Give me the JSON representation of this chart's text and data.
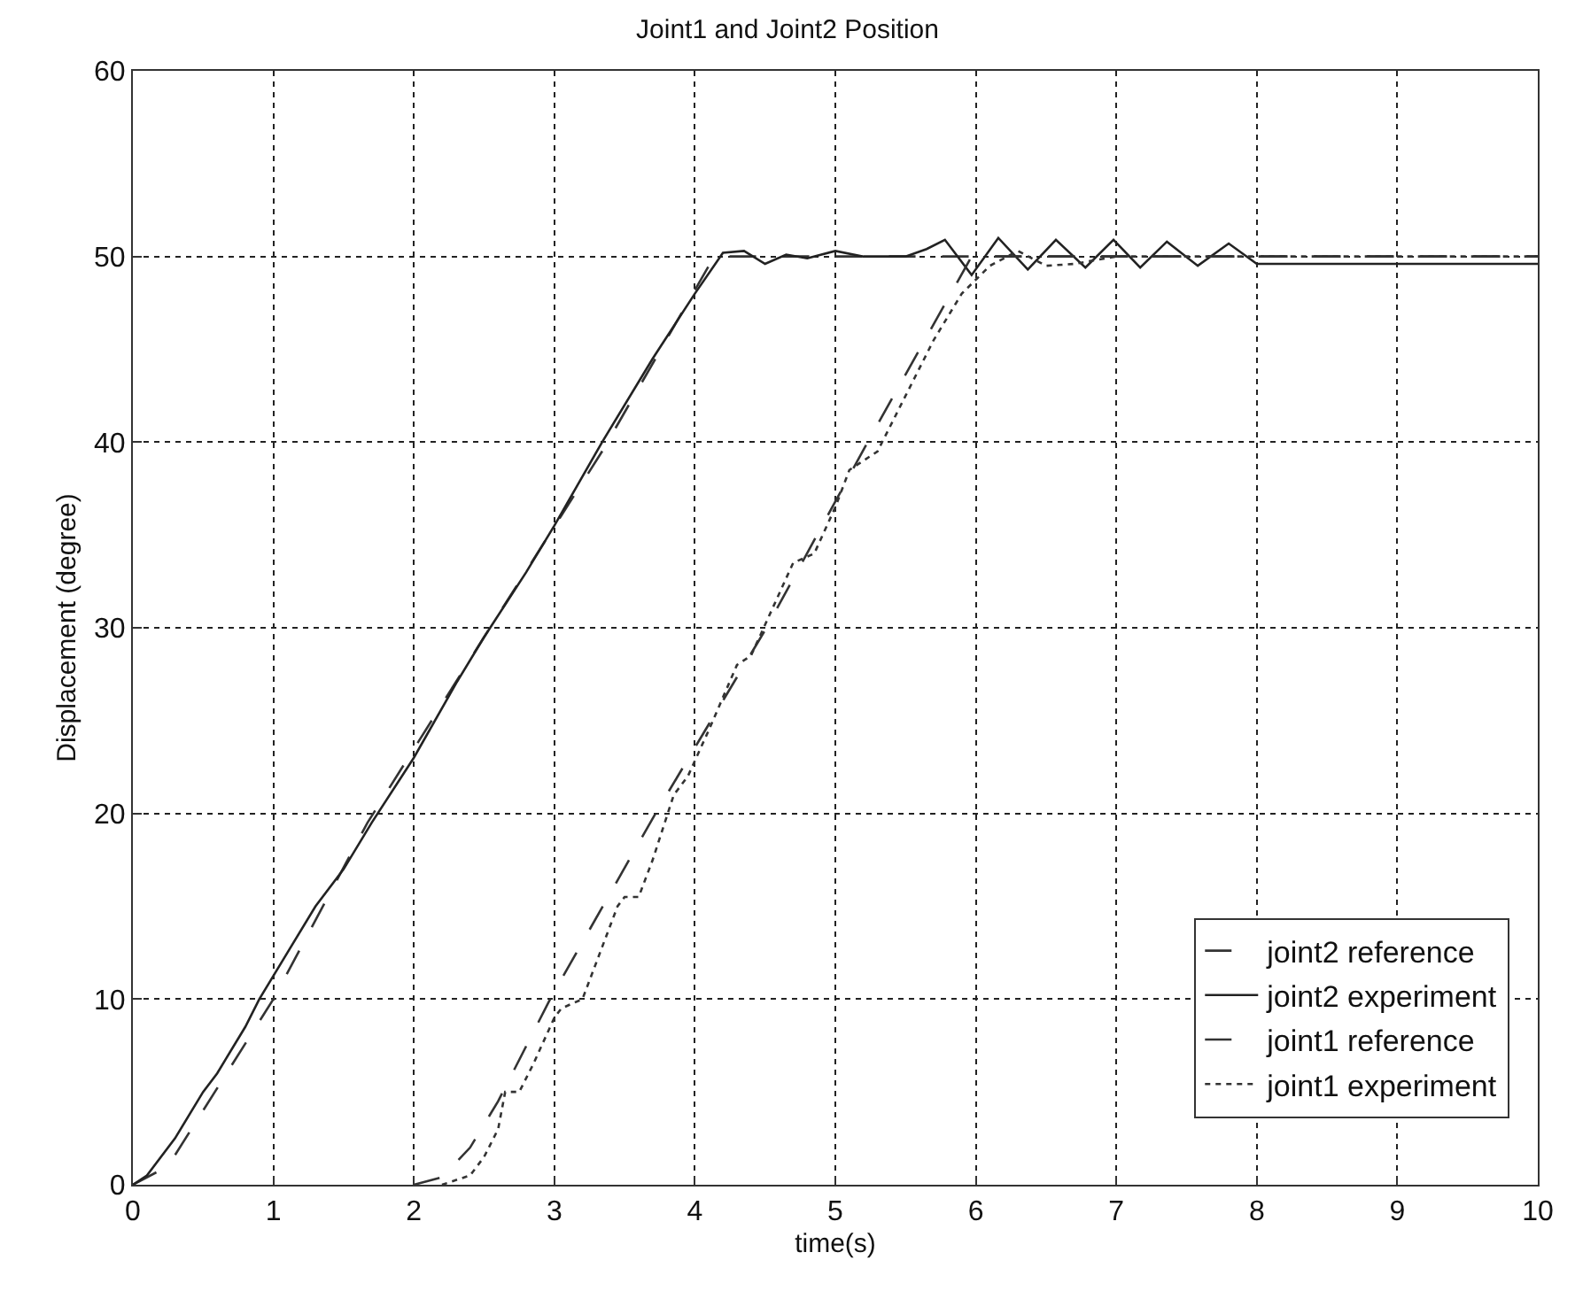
{
  "chart_data": {
    "type": "line",
    "title": "Joint1 and Joint2 Position",
    "xlabel": "time(s)",
    "ylabel": "Displacement (degree)",
    "xlim": [
      0,
      10
    ],
    "ylim": [
      0,
      60
    ],
    "xticks": [
      0,
      1,
      2,
      3,
      4,
      5,
      6,
      7,
      8,
      9,
      10
    ],
    "yticks": [
      0,
      10,
      20,
      30,
      40,
      50,
      60
    ],
    "grid": true,
    "legend": "bottom right",
    "marker": "none",
    "series": [
      {
        "name": "joint2 reference",
        "color": "#333333",
        "line_style": "dashed",
        "x": [
          0,
          0.25,
          0.5,
          1,
          1.67,
          2.5,
          3.34,
          4.1,
          4.15,
          10
        ],
        "values": [
          0,
          1,
          4,
          10,
          19.5,
          29.5,
          39.5,
          49.5,
          50,
          50
        ]
      },
      {
        "name": "joint2 experiment",
        "color": "#222222",
        "line_style": "solid",
        "x": [
          0,
          0.1,
          0.3,
          0.5,
          0.6,
          0.8,
          0.9,
          1.1,
          1.3,
          1.5,
          1.7,
          2,
          2.3,
          2.5,
          2.8,
          3,
          3.34,
          3.7,
          4,
          4.2,
          4.35,
          4.5,
          4.65,
          4.8,
          5,
          5.2,
          5.5,
          5.65,
          5.78,
          5.97,
          6.16,
          6.37,
          6.57,
          6.78,
          6.98,
          7.17,
          7.36,
          7.58,
          7.8,
          8,
          10
        ],
        "values": [
          0,
          0.5,
          2.5,
          5,
          6,
          8.5,
          10,
          12.5,
          15,
          17,
          19.5,
          23,
          27,
          29.5,
          33,
          35.5,
          40,
          44.5,
          48,
          50.2,
          50.3,
          49.6,
          50.1,
          49.9,
          50.3,
          50,
          50,
          50.4,
          50.9,
          49,
          51,
          49.3,
          50.9,
          49.4,
          50.9,
          49.4,
          50.8,
          49.5,
          50.7,
          49.6,
          49.6
        ]
      },
      {
        "name": "joint1 reference",
        "color": "#333333",
        "line_style": "dashed",
        "x": [
          2,
          2.2,
          2.4,
          2.6,
          2.97,
          3.72,
          4.51,
          5.23,
          5.97,
          10
        ],
        "values": [
          0,
          0.4,
          2,
          4.5,
          10,
          20,
          30,
          40,
          50,
          50
        ]
      },
      {
        "name": "joint1 experiment",
        "color": "#333333",
        "line_style": "dotted",
        "x": [
          2.2,
          2.4,
          2.5,
          2.6,
          2.65,
          2.75,
          2.85,
          3.0,
          3.05,
          3.2,
          3.3,
          3.45,
          3.5,
          3.6,
          3.7,
          3.85,
          3.95,
          4.1,
          4.3,
          4.4,
          4.55,
          4.7,
          4.85,
          5.0,
          5.1,
          5.3,
          5.5,
          5.7,
          5.9,
          6.1,
          6.3,
          6.5,
          6.7,
          7,
          8,
          10
        ],
        "values": [
          0,
          0.5,
          1.5,
          3,
          5,
          5,
          6.5,
          9,
          9.5,
          10,
          12,
          15,
          15.5,
          15.5,
          17.5,
          21,
          22,
          24.5,
          28,
          28.5,
          31,
          33.5,
          34,
          36.5,
          38.5,
          39.5,
          42.5,
          45.5,
          48,
          49.5,
          50.3,
          49.5,
          49.6,
          50,
          50,
          50
        ]
      }
    ]
  }
}
